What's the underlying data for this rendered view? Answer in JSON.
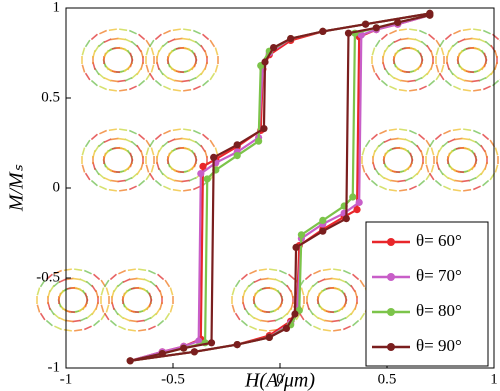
{
  "chart_data": {
    "type": "line",
    "xlabel": "H(A/μm)",
    "ylabel": "M/Mₛ",
    "xlim": [
      -1,
      1
    ],
    "ylim": [
      -1,
      1
    ],
    "xticks": [
      -1,
      -0.5,
      0,
      0.5,
      1
    ],
    "yticks": [
      -1,
      -0.5,
      0,
      0.5,
      1
    ],
    "legend": "lower right",
    "series": [
      {
        "name": "θ= 60°",
        "color": "#e8262a",
        "x": [
          0.7,
          0.4,
          0.2,
          0.05,
          -0.05,
          -0.08,
          -0.09,
          -0.2,
          -0.3,
          -0.36,
          -0.37,
          -0.45,
          -0.55,
          -0.7,
          -0.4,
          -0.2,
          -0.05,
          0.05,
          0.08,
          0.09,
          0.2,
          0.3,
          0.36,
          0.37,
          0.45,
          0.55,
          0.7
        ],
        "values": [
          0.97,
          0.91,
          0.87,
          0.82,
          0.74,
          0.66,
          0.32,
          0.23,
          0.16,
          0.12,
          -0.84,
          -0.88,
          -0.91,
          -0.96,
          -0.91,
          -0.87,
          -0.82,
          -0.74,
          -0.66,
          -0.32,
          -0.23,
          -0.16,
          -0.12,
          0.84,
          0.88,
          0.91,
          0.96
        ]
      },
      {
        "name": "θ= 70°",
        "color": "#c85ec8",
        "x": [
          0.7,
          0.4,
          0.2,
          0.05,
          -0.05,
          -0.08,
          -0.1,
          -0.2,
          -0.3,
          -0.37,
          -0.38,
          -0.45,
          -0.55,
          -0.7,
          -0.4,
          -0.2,
          -0.05,
          0.05,
          0.08,
          0.1,
          0.2,
          0.3,
          0.37,
          0.38,
          0.45,
          0.55,
          0.7
        ],
        "values": [
          0.97,
          0.91,
          0.87,
          0.83,
          0.75,
          0.68,
          0.28,
          0.2,
          0.14,
          0.08,
          -0.85,
          -0.88,
          -0.91,
          -0.96,
          -0.91,
          -0.87,
          -0.83,
          -0.75,
          -0.68,
          -0.28,
          -0.2,
          -0.14,
          -0.08,
          0.85,
          0.88,
          0.91,
          0.96
        ]
      },
      {
        "name": "θ= 80°",
        "color": "#7cc44a",
        "x": [
          0.7,
          0.4,
          0.2,
          0.05,
          -0.05,
          -0.09,
          -0.1,
          -0.2,
          -0.3,
          -0.34,
          -0.35,
          -0.45,
          -0.55,
          -0.7,
          -0.4,
          -0.2,
          -0.05,
          0.05,
          0.09,
          0.1,
          0.2,
          0.3,
          0.34,
          0.35,
          0.45,
          0.55,
          0.7
        ],
        "values": [
          0.97,
          0.91,
          0.87,
          0.83,
          0.76,
          0.68,
          0.26,
          0.18,
          0.1,
          0.05,
          -0.86,
          -0.89,
          -0.92,
          -0.96,
          -0.91,
          -0.87,
          -0.83,
          -0.76,
          -0.68,
          -0.26,
          -0.18,
          -0.1,
          -0.05,
          0.86,
          0.89,
          0.92,
          0.96
        ]
      },
      {
        "name": "θ= 90°",
        "color": "#7a1e1e",
        "x": [
          0.7,
          0.4,
          0.2,
          0.05,
          -0.03,
          -0.07,
          -0.075,
          -0.2,
          -0.31,
          -0.32,
          -0.45,
          -0.55,
          -0.7,
          -0.4,
          -0.2,
          -0.05,
          0.03,
          0.07,
          0.075,
          0.2,
          0.31,
          0.32,
          0.45,
          0.55,
          0.7
        ],
        "values": [
          0.97,
          0.91,
          0.87,
          0.83,
          0.78,
          0.7,
          0.33,
          0.24,
          0.17,
          -0.86,
          -0.89,
          -0.92,
          -0.96,
          -0.91,
          -0.87,
          -0.83,
          -0.78,
          -0.7,
          -0.33,
          -0.24,
          -0.17,
          0.86,
          0.89,
          0.92,
          0.96
        ]
      }
    ]
  }
}
